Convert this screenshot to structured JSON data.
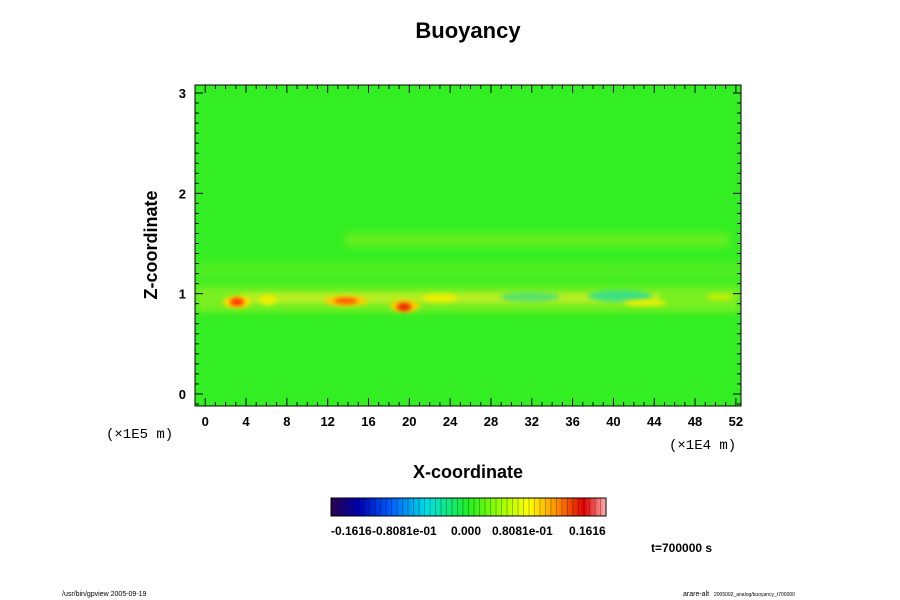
{
  "chart_data": {
    "type": "heatmap",
    "title": "Buoyancy",
    "xlabel": "X-coordinate",
    "ylabel": "Z-coordinate",
    "x_unit": "(×1E4 m)",
    "y_unit": "(×1E5 m)",
    "xlim": [
      -1,
      52.5
    ],
    "ylim": [
      -0.12,
      3.08
    ],
    "x_ticks": [
      "0",
      "4",
      "8",
      "12",
      "16",
      "20",
      "24",
      "28",
      "32",
      "36",
      "40",
      "44",
      "48",
      "52"
    ],
    "y_ticks": [
      "0",
      "1",
      "2",
      "3"
    ],
    "colorbar": {
      "labels": [
        "-0.1616",
        "-0.8081e-01",
        "0.000",
        "0.8081e-01",
        "0.1616"
      ],
      "range": [
        -0.1616,
        0.1616
      ]
    },
    "time_label": "t=700000 s",
    "background_value": 0.0,
    "features": [
      {
        "x": 2.8,
        "z": 0.9,
        "value": 0.16
      },
      {
        "x": 6.0,
        "z": 0.95,
        "value": 0.08
      },
      {
        "x": 13.5,
        "z": 0.91,
        "value": 0.13
      },
      {
        "x": 19.0,
        "z": 0.86,
        "value": 0.15
      },
      {
        "x": 40.0,
        "z": 0.97,
        "value": -0.05
      },
      {
        "x": 30.0,
        "z": 0.98,
        "value": -0.04
      },
      {
        "x": 42.0,
        "z": 0.9,
        "value": 0.05
      }
    ]
  },
  "footer": {
    "left": "/usr/bin/gpview 2005-09-19",
    "right": "arare-alt",
    "right_small": "2005092_analog/buoyancy_t700000"
  }
}
